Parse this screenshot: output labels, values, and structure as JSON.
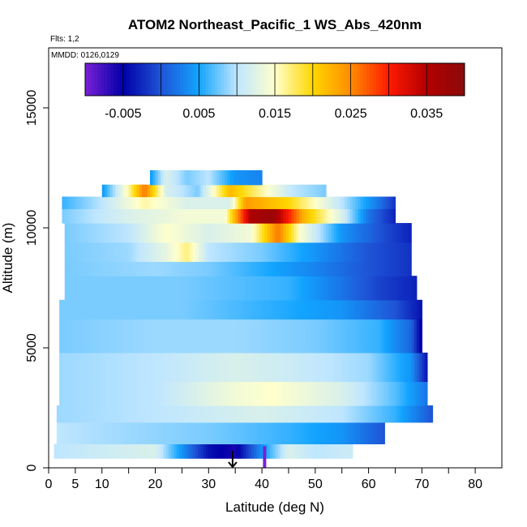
{
  "chart_data": {
    "type": "heatmap",
    "title": "ATOM2 Northeast_Pacific_1 WS_Abs_420nm",
    "annotations": {
      "flights": "Flts: 1,2",
      "dates": "MMDD: 0126,0129"
    },
    "xlabel": "Latitude (deg N)",
    "ylabel": "Altitude (m)",
    "xlim": [
      0,
      85
    ],
    "ylim": [
      0,
      17500
    ],
    "x_ticks": [
      0,
      5,
      10,
      20,
      30,
      40,
      50,
      60,
      70,
      80
    ],
    "y_ticks": [
      0,
      5000,
      10000,
      15000
    ],
    "y_tick_labels": [
      "0",
      "5000",
      "10000",
      "15000"
    ],
    "colorbar": {
      "range": [
        -0.01,
        0.04
      ],
      "ticks": [
        -0.005,
        0.005,
        0.015,
        0.025,
        0.035
      ],
      "tick_labels": [
        "-0.005",
        "0.005",
        "0.015",
        "0.025",
        "0.035"
      ],
      "colors": [
        "#7a1fd6",
        "#0000a8",
        "#1f54d6",
        "#12a4ff",
        "#bfe6ff",
        "#ffffcc",
        "#ffd700",
        "#ff8c00",
        "#ff1a00",
        "#b30000",
        "#8b0a0a"
      ]
    },
    "curtain_rows": [
      {
        "alt": [
          400,
          1000
        ],
        "lat": [
          1,
          57
        ],
        "stops": [
          [
            1,
            0.01
          ],
          [
            10,
            0.011
          ],
          [
            20,
            0.012
          ],
          [
            30,
            -0.004
          ],
          [
            35,
            -0.006
          ],
          [
            40,
            0.004
          ],
          [
            45,
            0.012
          ],
          [
            50,
            0.01
          ],
          [
            57,
            0.011
          ]
        ]
      },
      {
        "alt": [
          1000,
          1900
        ],
        "lat": [
          1.5,
          63
        ],
        "stops": [
          [
            1.5,
            0.01
          ],
          [
            15,
            0.009
          ],
          [
            30,
            0.008
          ],
          [
            45,
            0.006
          ],
          [
            55,
            0.004
          ],
          [
            63,
            0.0
          ]
        ]
      },
      {
        "alt": [
          1900,
          2600
        ],
        "lat": [
          1.5,
          72
        ],
        "stops": [
          [
            1.5,
            0.009
          ],
          [
            20,
            0.01
          ],
          [
            40,
            0.012
          ],
          [
            55,
            0.01
          ],
          [
            65,
            0.006
          ],
          [
            72,
            0.0
          ]
        ]
      },
      {
        "alt": [
          2600,
          3600
        ],
        "lat": [
          2,
          71
        ],
        "stops": [
          [
            2,
            0.009
          ],
          [
            20,
            0.01
          ],
          [
            35,
            0.014
          ],
          [
            42,
            0.015
          ],
          [
            55,
            0.012
          ],
          [
            65,
            0.007
          ],
          [
            71,
            0.002
          ]
        ]
      },
      {
        "alt": [
          3600,
          4800
        ],
        "lat": [
          2,
          71
        ],
        "stops": [
          [
            2,
            0.009
          ],
          [
            20,
            0.01
          ],
          [
            35,
            0.012
          ],
          [
            45,
            0.011
          ],
          [
            60,
            0.009
          ],
          [
            68,
            0.004
          ],
          [
            71,
            -0.004
          ]
        ]
      },
      {
        "alt": [
          4800,
          6200
        ],
        "lat": [
          2,
          70
        ],
        "stops": [
          [
            2,
            0.008
          ],
          [
            20,
            0.009
          ],
          [
            35,
            0.009
          ],
          [
            50,
            0.008
          ],
          [
            62,
            0.006
          ],
          [
            68,
            0.001
          ],
          [
            70,
            -0.006
          ]
        ]
      },
      {
        "alt": [
          6200,
          7000
        ],
        "lat": [
          2,
          70
        ],
        "stops": [
          [
            2,
            0.008
          ],
          [
            25,
            0.008
          ],
          [
            40,
            0.006
          ],
          [
            55,
            0.004
          ],
          [
            65,
            0.0
          ],
          [
            70,
            -0.004
          ]
        ]
      },
      {
        "alt": [
          7000,
          8000
        ],
        "lat": [
          3,
          69
        ],
        "stops": [
          [
            3,
            0.008
          ],
          [
            25,
            0.008
          ],
          [
            35,
            0.007
          ],
          [
            45,
            0.006
          ],
          [
            55,
            0.002
          ],
          [
            62,
            -0.001
          ],
          [
            69,
            -0.003
          ]
        ]
      },
      {
        "alt": [
          8000,
          8600
        ],
        "lat": [
          3,
          68
        ],
        "stops": [
          [
            3,
            0.008
          ],
          [
            20,
            0.009
          ],
          [
            30,
            0.008
          ],
          [
            38,
            0.006
          ],
          [
            50,
            0.003
          ],
          [
            60,
            0.0
          ],
          [
            68,
            -0.002
          ]
        ]
      },
      {
        "alt": [
          8600,
          9400
        ],
        "lat": [
          3,
          68
        ],
        "stops": [
          [
            3,
            0.008
          ],
          [
            15,
            0.009
          ],
          [
            22,
            0.013
          ],
          [
            26,
            0.017
          ],
          [
            30,
            0.01
          ],
          [
            40,
            0.008
          ],
          [
            50,
            0.004
          ],
          [
            60,
            0.0
          ],
          [
            68,
            -0.002
          ]
        ]
      },
      {
        "alt": [
          9400,
          10200
        ],
        "lat": [
          3,
          68
        ],
        "stops": [
          [
            3,
            0.008
          ],
          [
            15,
            0.01
          ],
          [
            22,
            0.015
          ],
          [
            30,
            0.012
          ],
          [
            38,
            0.014
          ],
          [
            43,
            0.026
          ],
          [
            47,
            0.015
          ],
          [
            55,
            0.004
          ],
          [
            62,
            0.0
          ],
          [
            68,
            -0.003
          ]
        ]
      },
      {
        "alt": [
          10200,
          10800
        ],
        "lat": [
          2.5,
          65
        ],
        "stops": [
          [
            2.5,
            0.008
          ],
          [
            15,
            0.012
          ],
          [
            25,
            0.014
          ],
          [
            33,
            0.014
          ],
          [
            38,
            0.036
          ],
          [
            42,
            0.038
          ],
          [
            48,
            0.022
          ],
          [
            55,
            0.012
          ],
          [
            60,
            0.002
          ],
          [
            65,
            -0.003
          ]
        ]
      },
      {
        "alt": [
          10800,
          11300
        ],
        "lat": [
          2.5,
          65
        ],
        "stops": [
          [
            2.5,
            0.006
          ],
          [
            10,
            0.01
          ],
          [
            18,
            0.016
          ],
          [
            26,
            0.012
          ],
          [
            34,
            0.012
          ],
          [
            37,
            0.024
          ],
          [
            45,
            0.02
          ],
          [
            55,
            0.01
          ],
          [
            62,
            0.002
          ],
          [
            65,
            -0.002
          ]
        ]
      },
      {
        "alt": [
          11300,
          11800
        ],
        "lat": [
          10,
          52
        ],
        "stops": [
          [
            10,
            0.004
          ],
          [
            15,
            0.016
          ],
          [
            18,
            0.026
          ],
          [
            22,
            0.012
          ],
          [
            28,
            0.008
          ],
          [
            34,
            0.022
          ],
          [
            40,
            0.016
          ],
          [
            46,
            0.01
          ],
          [
            52,
            0.008
          ]
        ]
      },
      {
        "alt": [
          11800,
          12400
        ],
        "lat": [
          19,
          40
        ],
        "stops": [
          [
            19,
            0.004
          ],
          [
            22,
            0.012
          ],
          [
            26,
            0.008
          ],
          [
            30,
            0.01
          ],
          [
            35,
            0.004
          ],
          [
            40,
            0.003
          ]
        ]
      }
    ],
    "markers": [
      {
        "lat": 34.5,
        "alt": 700,
        "type": "arrow-down"
      },
      {
        "lat": 40.5,
        "alt": 300,
        "type": "bar"
      }
    ]
  }
}
